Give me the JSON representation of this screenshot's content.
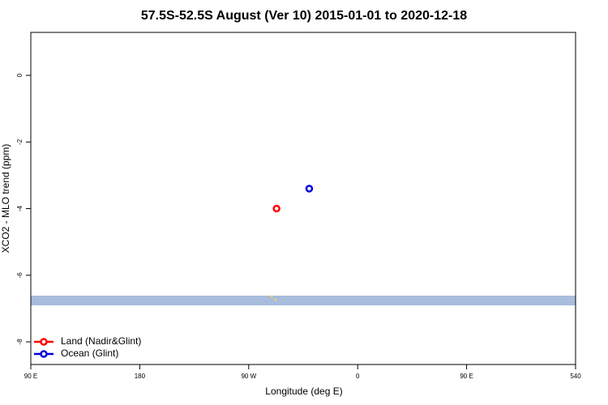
{
  "chart_data": {
    "type": "scatter",
    "title": "57.5S-52.5S August (Ver 10)   2015-01-01 to 2020-12-18",
    "x_label": "Longitude (deg E)",
    "y_label": "XCO2 - MLO trend (ppm)",
    "xlim": [
      90,
      540
    ],
    "xticks": [
      {
        "value": 90,
        "label": "90 E"
      },
      180,
      {
        "value": 270,
        "label": "90 W"
      },
      {
        "value": 360,
        "label": "0"
      },
      {
        "value": 450,
        "label": "90 E"
      },
      540
    ],
    "ylim": [
      -8.68,
      1.29
    ],
    "yticks": [
      0,
      -2,
      -4,
      -6,
      -8
    ],
    "legend": "bottom-left",
    "series": [
      {
        "name": "Land (Nadir&Glint)",
        "color": "#ff0000",
        "x": [
          293
        ],
        "values": [
          -4.0
        ]
      },
      {
        "name": "Ocean (Glint)",
        "color": "#0000dd",
        "x": [
          320
        ],
        "values": [
          -3.4
        ]
      }
    ]
  }
}
